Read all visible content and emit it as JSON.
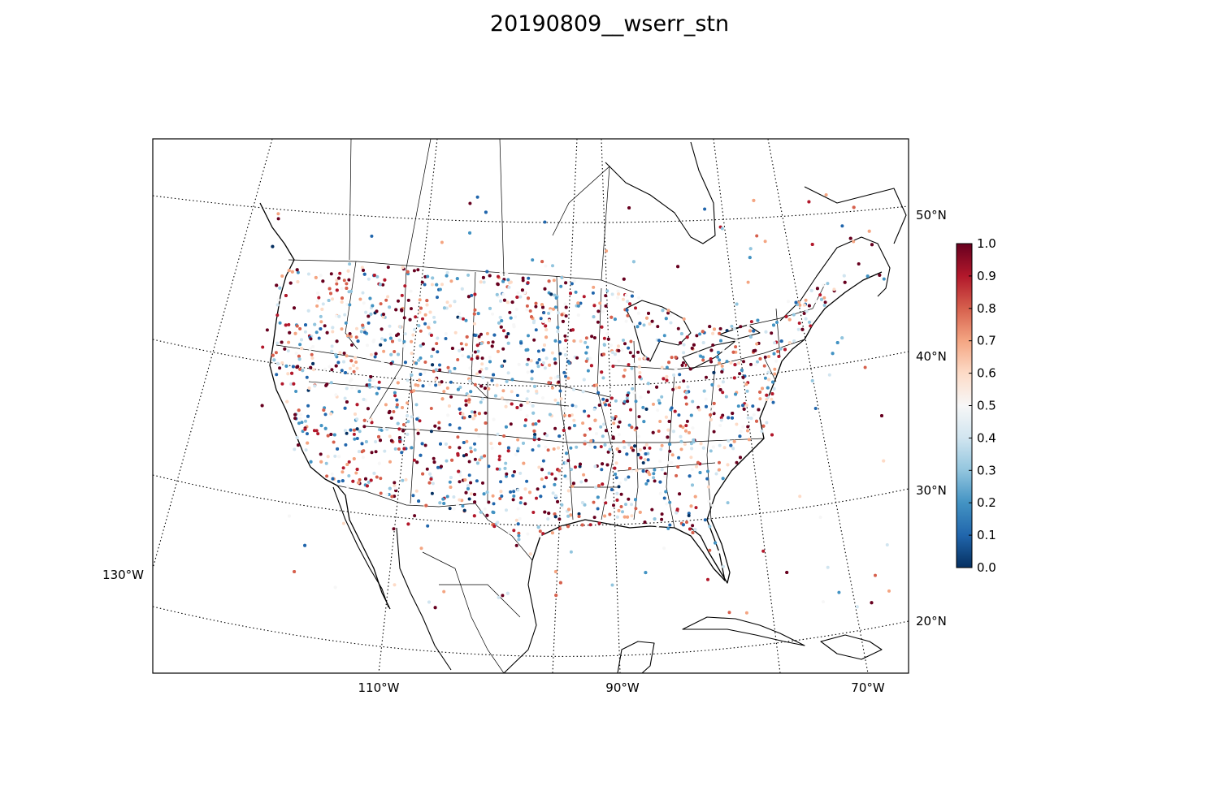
{
  "title": "20190809__wserr_stn",
  "map": {
    "projection": "lambert-conformal",
    "lat_labels": [
      "50°N",
      "40°N",
      "30°N",
      "20°N"
    ],
    "lon_labels": [
      "130°W",
      "110°W",
      "90°W",
      "70°W"
    ],
    "gridlines": "dotted"
  },
  "colorbar": {
    "colormap": "RdBu_r",
    "min": 0.0,
    "max": 1.0,
    "ticks": [
      "0.0",
      "0.1",
      "0.2",
      "0.3",
      "0.4",
      "0.5",
      "0.6",
      "0.7",
      "0.8",
      "0.9",
      "1.0"
    ],
    "colors": [
      "#053061",
      "#2166ac",
      "#4393c3",
      "#92c5de",
      "#d1e5f0",
      "#f7f7f7",
      "#fddbc7",
      "#f4a582",
      "#d6604d",
      "#b2182b",
      "#67001f"
    ]
  }
}
